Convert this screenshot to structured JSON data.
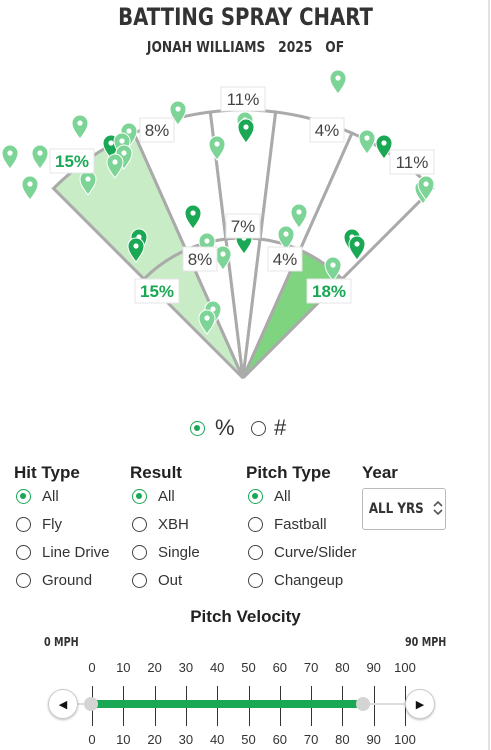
{
  "header": {
    "title": "BATTING SPRAY CHART",
    "subtitle": "JONAH WILLIAMS   2025   OF"
  },
  "colors": {
    "accent": "#1aa855",
    "zone_light": "#c8ecc6",
    "zone_dark": "#7fd47f",
    "zone_line": "#aaaaaa",
    "pin_dark": "#1aa855",
    "pin_light": "#7cd497"
  },
  "spray_chart": {
    "zones": [
      {
        "id": "outer-left",
        "label": "15%",
        "shade": "light"
      },
      {
        "id": "outer-left-center",
        "label": "8%",
        "shade": "none"
      },
      {
        "id": "outer-center",
        "label": "11%",
        "shade": "none"
      },
      {
        "id": "outer-right-center",
        "label": "4%",
        "shade": "none"
      },
      {
        "id": "outer-right",
        "label": "11%",
        "shade": "none"
      },
      {
        "id": "inner-left",
        "label": "15%",
        "shade": "light"
      },
      {
        "id": "inner-left-center",
        "label": "8%",
        "shade": "none"
      },
      {
        "id": "inner-center",
        "label": "7%",
        "shade": "none"
      },
      {
        "id": "inner-right-center",
        "label": "4%",
        "shade": "none"
      },
      {
        "id": "inner-right",
        "label": "18%",
        "shade": "dark"
      }
    ]
  },
  "display_toggle": {
    "percent_label": "%",
    "count_label": "#",
    "selected": "%"
  },
  "filters": {
    "hit_type": {
      "title": "Hit Type",
      "options": [
        "All",
        "Fly",
        "Line Drive",
        "Ground"
      ],
      "selected": "All"
    },
    "result": {
      "title": "Result",
      "options": [
        "All",
        "XBH",
        "Single",
        "Out"
      ],
      "selected": "All"
    },
    "pitch_type": {
      "title": "Pitch Type",
      "options": [
        "All",
        "Fastball",
        "Curve/Slider",
        "Changeup"
      ],
      "selected": "All"
    },
    "year": {
      "title": "Year",
      "value": "ALL YRS",
      "chevron_icon": "up-down-chevron-icon"
    }
  },
  "pitch_velocity": {
    "title": "Pitch Velocity",
    "min_label": "0 MPH",
    "max_label": "90 MPH",
    "ticks": [
      "0",
      "10",
      "20",
      "30",
      "40",
      "50",
      "60",
      "70",
      "80",
      "90",
      "100"
    ],
    "range_low": 0,
    "range_high": 85,
    "left_icon": "left-arrow-icon",
    "right_icon": "right-arrow-icon"
  }
}
